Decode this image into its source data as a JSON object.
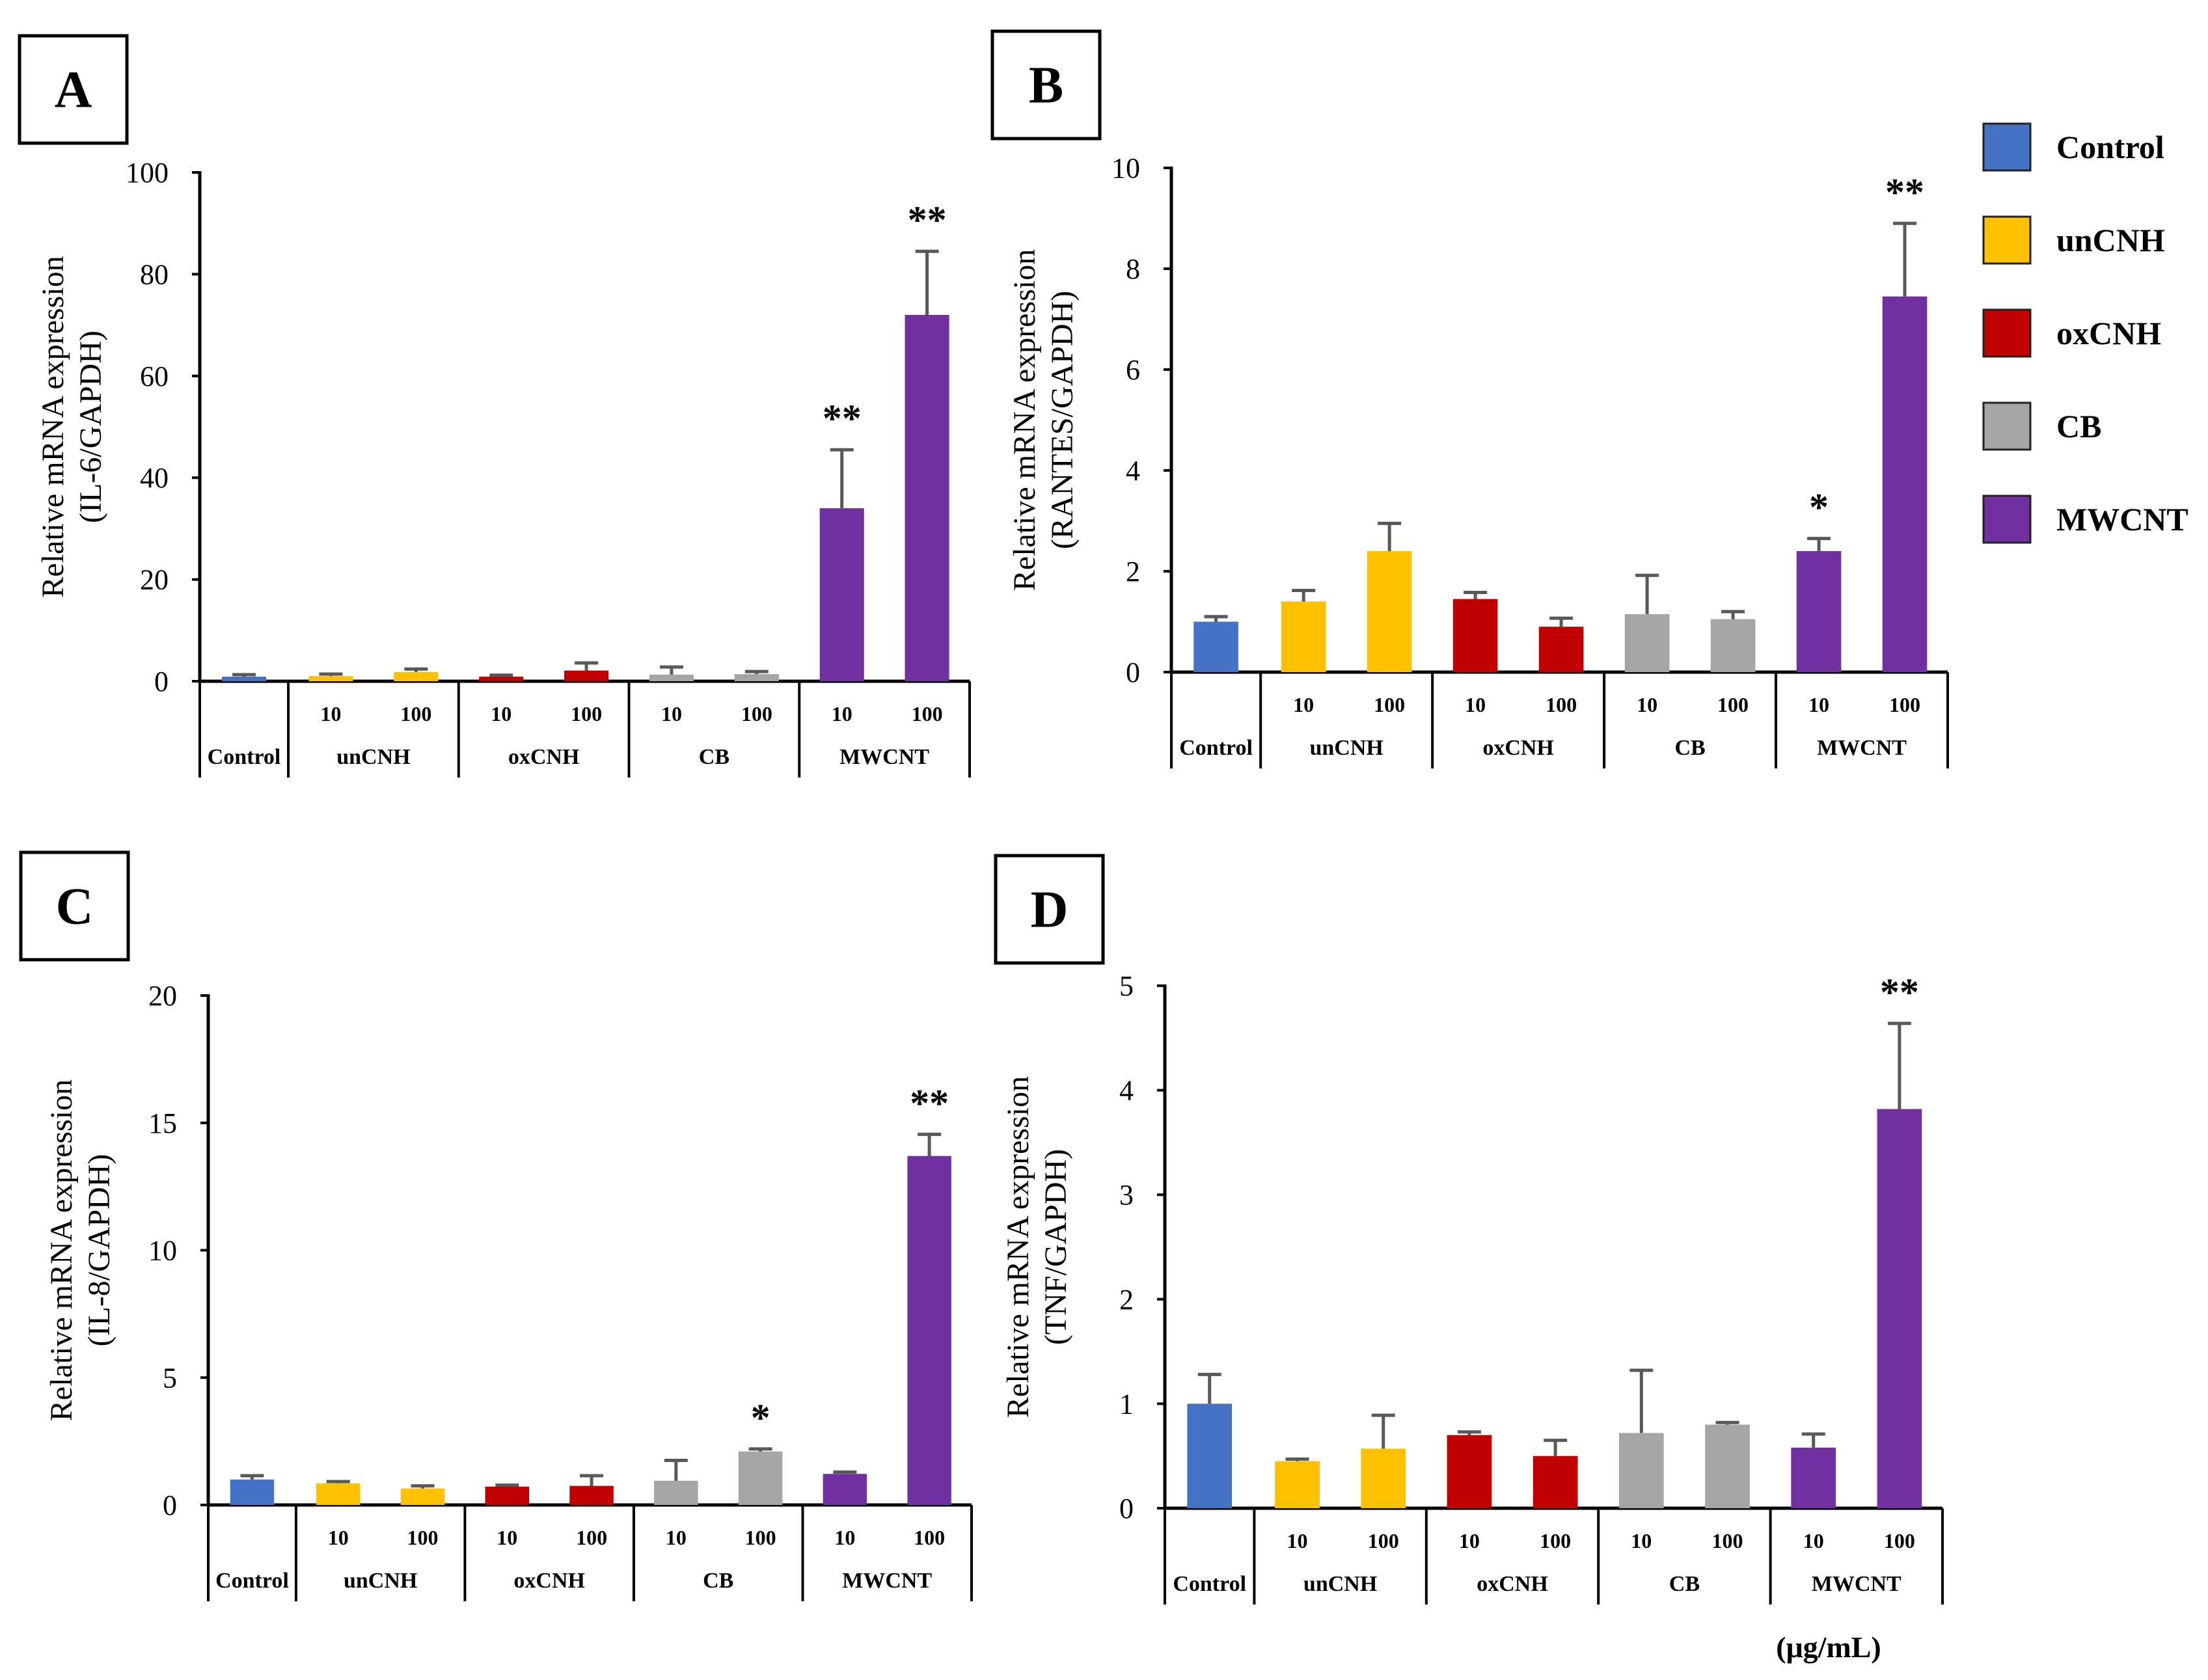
{
  "colors": {
    "Control": "#4472C4",
    "unCNH": "#FFC000",
    "oxCNH": "#C00000",
    "CB": "#A5A5A5",
    "MWCNT": "#7030A0"
  },
  "legend": {
    "placement": "top-right",
    "items": [
      "Control",
      "unCNH",
      "oxCNH",
      "CB",
      "MWCNT"
    ]
  },
  "unit_label": "(μg/mL)",
  "chart_data": [
    {
      "type": "bar",
      "panel": "A",
      "ylabel_line1": "Relative mRNA expression",
      "ylabel_line2": "(IL-6/GAPDH)",
      "ylim": [
        0,
        100
      ],
      "yticks": [
        0,
        20,
        40,
        60,
        80,
        100
      ],
      "groups": [
        "Control",
        "unCNH",
        "oxCNH",
        "CB",
        "MWCNT"
      ],
      "doses": [
        "",
        "10",
        "100",
        "10",
        "100",
        "10",
        "100",
        "10",
        "100"
      ],
      "bar_group": [
        "Control",
        "unCNH",
        "unCNH",
        "oxCNH",
        "oxCNH",
        "CB",
        "CB",
        "MWCNT",
        "MWCNT"
      ],
      "values": [
        0.9,
        1.0,
        1.8,
        0.9,
        2.1,
        1.3,
        1.4,
        34,
        72
      ],
      "errors": [
        0.4,
        0.4,
        0.6,
        0.3,
        1.5,
        1.5,
        0.5,
        11.5,
        12.5
      ],
      "significance": [
        "",
        "",
        "",
        "",
        "",
        "",
        "",
        "**",
        "**"
      ]
    },
    {
      "type": "bar",
      "panel": "B",
      "ylabel_line1": "Relative mRNA expression",
      "ylabel_line2": "(RANTES/GAPDH)",
      "ylim": [
        0,
        10
      ],
      "yticks": [
        0,
        2,
        4,
        6,
        8,
        10
      ],
      "groups": [
        "Control",
        "unCNH",
        "oxCNH",
        "CB",
        "MWCNT"
      ],
      "doses": [
        "",
        "10",
        "100",
        "10",
        "100",
        "10",
        "100",
        "10",
        "100"
      ],
      "bar_group": [
        "Control",
        "unCNH",
        "unCNH",
        "oxCNH",
        "oxCNH",
        "CB",
        "CB",
        "MWCNT",
        "MWCNT"
      ],
      "values": [
        1.0,
        1.4,
        2.4,
        1.45,
        0.9,
        1.15,
        1.05,
        2.4,
        7.45
      ],
      "errors": [
        0.1,
        0.22,
        0.55,
        0.13,
        0.17,
        0.77,
        0.15,
        0.25,
        1.45
      ],
      "significance": [
        "",
        "",
        "",
        "",
        "",
        "",
        "",
        "*",
        "**"
      ]
    },
    {
      "type": "bar",
      "panel": "C",
      "ylabel_line1": "Relative mRNA expression",
      "ylabel_line2": "(IL-8/GAPDH)",
      "ylim": [
        0,
        20
      ],
      "yticks": [
        0,
        5,
        10,
        15,
        20
      ],
      "groups": [
        "Control",
        "unCNH",
        "oxCNH",
        "CB",
        "MWCNT"
      ],
      "doses": [
        "",
        "10",
        "100",
        "10",
        "100",
        "10",
        "100",
        "10",
        "100"
      ],
      "bar_group": [
        "Control",
        "unCNH",
        "unCNH",
        "oxCNH",
        "oxCNH",
        "CB",
        "CB",
        "MWCNT",
        "MWCNT"
      ],
      "values": [
        1.0,
        0.85,
        0.65,
        0.72,
        0.75,
        0.95,
        2.1,
        1.22,
        13.7
      ],
      "errors": [
        0.15,
        0.07,
        0.1,
        0.06,
        0.4,
        0.8,
        0.1,
        0.07,
        0.85
      ],
      "significance": [
        "",
        "",
        "",
        "",
        "",
        "",
        "*",
        "",
        "**"
      ]
    },
    {
      "type": "bar",
      "panel": "D",
      "ylabel_line1": "Relative mRNA expression",
      "ylabel_line2": "(TNF/GAPDH)",
      "ylim": [
        0,
        5
      ],
      "yticks": [
        0,
        1,
        2,
        3,
        4,
        5
      ],
      "groups": [
        "Control",
        "unCNH",
        "oxCNH",
        "CB",
        "MWCNT"
      ],
      "doses": [
        "",
        "10",
        "100",
        "10",
        "100",
        "10",
        "100",
        "10",
        "100"
      ],
      "bar_group": [
        "Control",
        "unCNH",
        "unCNH",
        "oxCNH",
        "oxCNH",
        "CB",
        "CB",
        "MWCNT",
        "MWCNT"
      ],
      "values": [
        1.0,
        0.45,
        0.57,
        0.7,
        0.5,
        0.72,
        0.8,
        0.58,
        3.82
      ],
      "errors": [
        0.28,
        0.02,
        0.32,
        0.03,
        0.15,
        0.6,
        0.02,
        0.13,
        0.82
      ],
      "significance": [
        "",
        "",
        "",
        "",
        "",
        "",
        "",
        "",
        "**"
      ]
    }
  ]
}
